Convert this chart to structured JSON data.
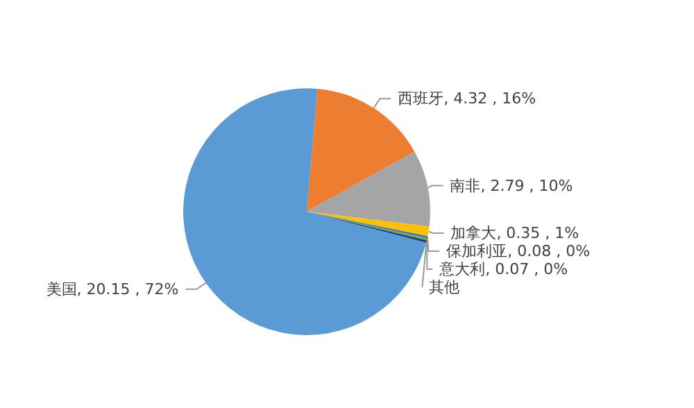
{
  "chart_data": {
    "type": "pie",
    "categories": [
      "西班牙",
      "南非",
      "加拿大",
      "保加利亚",
      "意大利",
      "其他",
      "美国"
    ],
    "values": [
      4.32,
      2.79,
      0.35,
      0.08,
      0.07,
      0.1,
      20.15
    ],
    "value_labels": [
      ", 4.32 , 16%",
      ", 2.79 , 10%",
      ", 0.35 , 1%",
      ", 0.08 , 0%",
      ", 0.07 , 0%",
      null,
      ", 20.15 , 72%"
    ],
    "colors": [
      "#ed7d31",
      "#a5a5a5",
      "#ffc000",
      "#4472c4",
      "#70ad47",
      "#264478",
      "#5b9bd5"
    ]
  }
}
